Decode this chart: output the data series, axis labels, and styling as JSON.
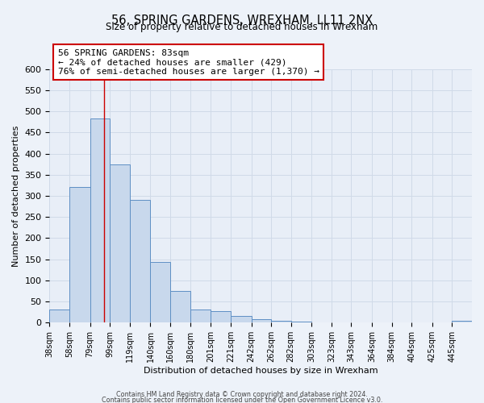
{
  "title": "56, SPRING GARDENS, WREXHAM, LL11 2NX",
  "subtitle": "Size of property relative to detached houses in Wrexham",
  "xlabel": "Distribution of detached houses by size in Wrexham",
  "ylabel": "Number of detached properties",
  "bin_labels": [
    "38sqm",
    "58sqm",
    "79sqm",
    "99sqm",
    "119sqm",
    "140sqm",
    "160sqm",
    "180sqm",
    "201sqm",
    "221sqm",
    "242sqm",
    "262sqm",
    "282sqm",
    "303sqm",
    "323sqm",
    "343sqm",
    "364sqm",
    "384sqm",
    "404sqm",
    "425sqm",
    "445sqm"
  ],
  "bar_heights": [
    32,
    322,
    483,
    375,
    290,
    144,
    76,
    31,
    28,
    16,
    9,
    5,
    2,
    1,
    0,
    0,
    0,
    0,
    0,
    0,
    5
  ],
  "bar_color": "#c8d8ec",
  "bar_edge_color": "#5e8fc4",
  "bar_edge_width": 0.7,
  "red_line_x": 83,
  "bin_edges_values": [
    28,
    48,
    69,
    89,
    109,
    130,
    150,
    170,
    191,
    211,
    232,
    252,
    272,
    293,
    313,
    333,
    354,
    374,
    394,
    415,
    435,
    455
  ],
  "annotation_text_line1": "56 SPRING GARDENS: 83sqm",
  "annotation_text_line2": "← 24% of detached houses are smaller (429)",
  "annotation_text_line3": "76% of semi-detached houses are larger (1,370) →",
  "annotation_box_color": "#ffffff",
  "annotation_box_edge_color": "#cc0000",
  "ylim": [
    0,
    600
  ],
  "yticks": [
    0,
    50,
    100,
    150,
    200,
    250,
    300,
    350,
    400,
    450,
    500,
    550,
    600
  ],
  "footer_line1": "Contains HM Land Registry data © Crown copyright and database right 2024.",
  "footer_line2": "Contains public sector information licensed under the Open Government Licence v3.0.",
  "bg_color": "#edf2f9",
  "plot_bg_color": "#e8eef7",
  "grid_color": "#d0dae8"
}
